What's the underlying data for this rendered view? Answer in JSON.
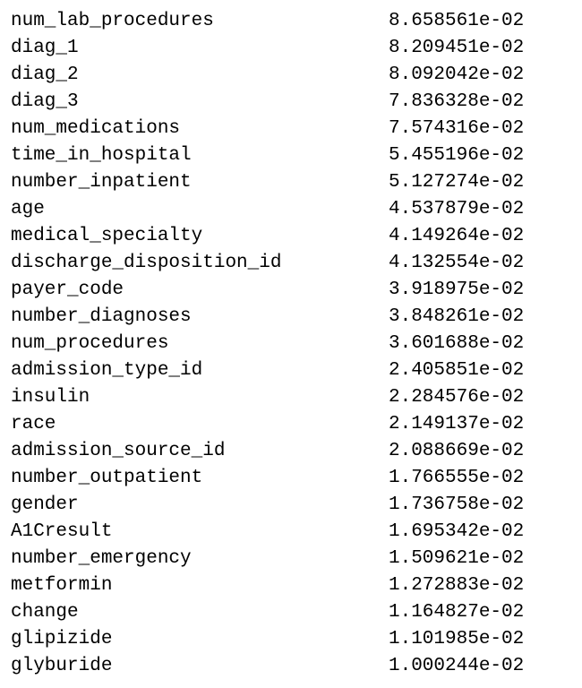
{
  "rows": [
    {
      "feature": "num_lab_procedures",
      "value": "8.658561e-02"
    },
    {
      "feature": "diag_1",
      "value": "8.209451e-02"
    },
    {
      "feature": "diag_2",
      "value": "8.092042e-02"
    },
    {
      "feature": "diag_3",
      "value": "7.836328e-02"
    },
    {
      "feature": "num_medications",
      "value": "7.574316e-02"
    },
    {
      "feature": "time_in_hospital",
      "value": "5.455196e-02"
    },
    {
      "feature": "number_inpatient",
      "value": "5.127274e-02"
    },
    {
      "feature": "age",
      "value": "4.537879e-02"
    },
    {
      "feature": "medical_specialty",
      "value": "4.149264e-02"
    },
    {
      "feature": "discharge_disposition_id",
      "value": "4.132554e-02"
    },
    {
      "feature": "payer_code",
      "value": "3.918975e-02"
    },
    {
      "feature": "number_diagnoses",
      "value": "3.848261e-02"
    },
    {
      "feature": "num_procedures",
      "value": "3.601688e-02"
    },
    {
      "feature": "admission_type_id",
      "value": "2.405851e-02"
    },
    {
      "feature": "insulin",
      "value": "2.284576e-02"
    },
    {
      "feature": "race",
      "value": "2.149137e-02"
    },
    {
      "feature": "admission_source_id",
      "value": "2.088669e-02"
    },
    {
      "feature": "number_outpatient",
      "value": "1.766555e-02"
    },
    {
      "feature": "gender",
      "value": "1.736758e-02"
    },
    {
      "feature": "A1Cresult",
      "value": "1.695342e-02"
    },
    {
      "feature": "number_emergency",
      "value": "1.509621e-02"
    },
    {
      "feature": "metformin",
      "value": "1.272883e-02"
    },
    {
      "feature": "change",
      "value": "1.164827e-02"
    },
    {
      "feature": "glipizide",
      "value": "1.101985e-02"
    },
    {
      "feature": "glyburide",
      "value": "1.000244e-02"
    }
  ]
}
